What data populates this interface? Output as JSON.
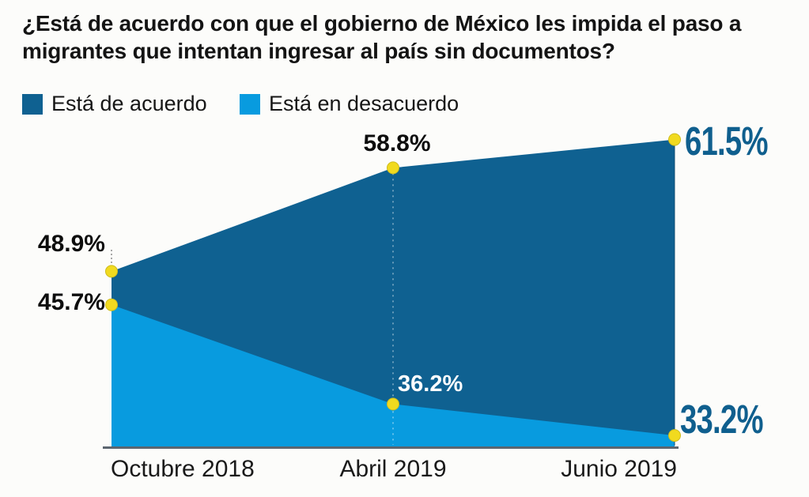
{
  "title": {
    "text": "¿Está de acuerdo con que el gobierno de México les impida el paso a migrantes que intentan ingresar al país sin documentos?"
  },
  "legend": {
    "items": [
      {
        "label": "Está de acuerdo",
        "color": "#0f6191"
      },
      {
        "label": "Está en desacuerdo",
        "color": "#089bdf"
      }
    ]
  },
  "chart_data": {
    "type": "area",
    "title": "¿Está de acuerdo con que el gobierno de México les impida el paso a migrantes que intentan ingresar al país sin documentos?",
    "categories": [
      "Octubre 2018",
      "Abril 2019",
      "Junio 2019"
    ],
    "series": [
      {
        "name": "Está de acuerdo",
        "color": "#0f6191",
        "values": [
          48.9,
          58.8,
          61.5
        ]
      },
      {
        "name": "Está en desacuerdo",
        "color": "#089bdf",
        "values": [
          45.7,
          36.2,
          33.2
        ]
      }
    ],
    "point_labels": {
      "agree": [
        "48.9%",
        "58.8%",
        "61.5%"
      ],
      "disagree": [
        "45.7%",
        "36.2%",
        "33.2%"
      ]
    },
    "marker_color": "#f1da1f",
    "marker_edge_color": "#cdbc1e",
    "axis_color": "#5c6670",
    "ylim": [
      32.1,
      64
    ],
    "grid": false,
    "legend_position": "top-left",
    "xlabel": "",
    "ylabel": ""
  }
}
